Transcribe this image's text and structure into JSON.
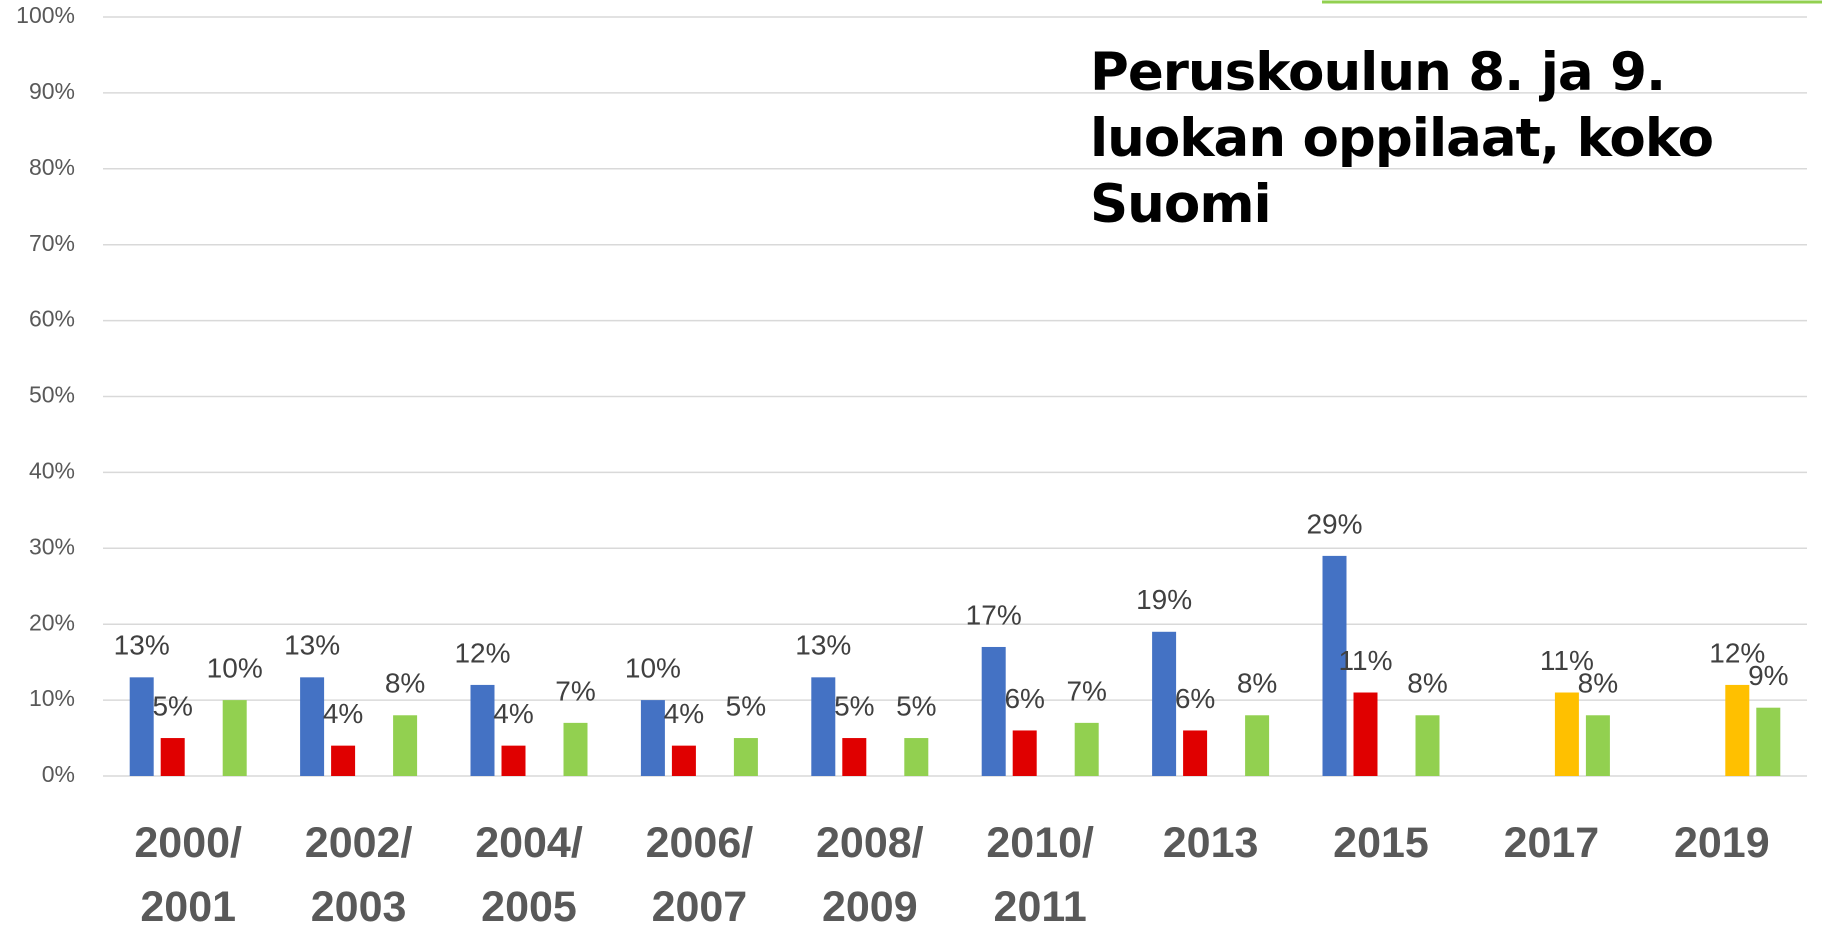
{
  "chart_data": {
    "type": "bar",
    "title": "Peruskoulun 8. ja 9. luokan oppilaat, koko Suomi",
    "categories": [
      "2000/2001",
      "2002/2003",
      "2004/2005",
      "2006/2007",
      "2008/2009",
      "2010/2011",
      "2013",
      "2015",
      "2017",
      "2019"
    ],
    "series": [
      {
        "color": "#4472c4",
        "values": [
          13,
          13,
          12,
          10,
          13,
          17,
          19,
          29,
          null,
          null
        ],
        "value_labels": [
          "13%",
          "13%",
          "12%",
          "10%",
          "13%",
          "17%",
          "19%",
          "29%",
          null,
          null
        ]
      },
      {
        "color": "#e00000",
        "values": [
          5,
          4,
          4,
          4,
          5,
          6,
          6,
          11,
          null,
          null
        ],
        "value_labels": [
          "5%",
          "4%",
          "4%",
          "4%",
          "5%",
          "6%",
          "6%",
          "11%",
          null,
          null
        ]
      },
      {
        "color": "#ffc000",
        "values": [
          null,
          null,
          null,
          null,
          null,
          null,
          null,
          null,
          11,
          12
        ],
        "value_labels": [
          null,
          null,
          null,
          null,
          null,
          null,
          null,
          null,
          "11%",
          "12%"
        ]
      },
      {
        "color": "#92d050",
        "values": [
          10,
          8,
          7,
          5,
          5,
          7,
          8,
          8,
          8,
          9
        ],
        "value_labels": [
          "10%",
          "8%",
          "7%",
          "5%",
          "5%",
          "7%",
          "8%",
          "8%",
          "8%",
          "9%"
        ]
      }
    ],
    "ylim": [
      0,
      100
    ],
    "yticks": [
      {
        "value": 0,
        "label": "0%"
      },
      {
        "value": 10,
        "label": "10%"
      },
      {
        "value": 20,
        "label": "20%"
      },
      {
        "value": 30,
        "label": "30%"
      },
      {
        "value": 40,
        "label": "40%"
      },
      {
        "value": 50,
        "label": "50%"
      },
      {
        "value": 60,
        "label": "60%"
      },
      {
        "value": 70,
        "label": "70%"
      },
      {
        "value": 80,
        "label": "80%"
      },
      {
        "value": 90,
        "label": "90%"
      },
      {
        "value": 100,
        "label": "100%"
      }
    ],
    "grid": true
  }
}
